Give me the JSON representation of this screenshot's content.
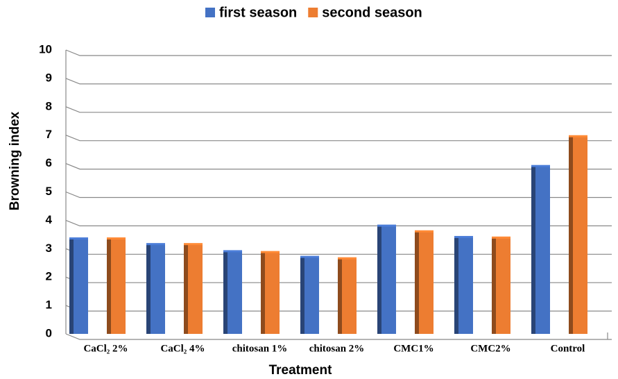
{
  "chart_data": {
    "type": "bar",
    "categories": [
      "CaCl₂ 2%",
      "CaCl₂ 4%",
      "chitosan 1%",
      "chitosan 2%",
      "CMC1%",
      "CMC2%",
      "Control"
    ],
    "series": [
      {
        "name": "first season",
        "color": "#4472c4",
        "values": [
          3.35,
          3.15,
          2.9,
          2.7,
          3.8,
          3.4,
          5.9
        ]
      },
      {
        "name": "second season",
        "color": "#ed7d31",
        "values": [
          3.35,
          3.15,
          2.87,
          2.65,
          3.6,
          3.38,
          6.95
        ]
      }
    ],
    "xlabel": "Treatment",
    "ylabel": "Browning index",
    "ylim": [
      0,
      10
    ],
    "yticks": [
      0,
      1,
      2,
      3,
      4,
      5,
      6,
      7,
      8,
      9,
      10
    ],
    "grid": true,
    "legend": "top"
  }
}
